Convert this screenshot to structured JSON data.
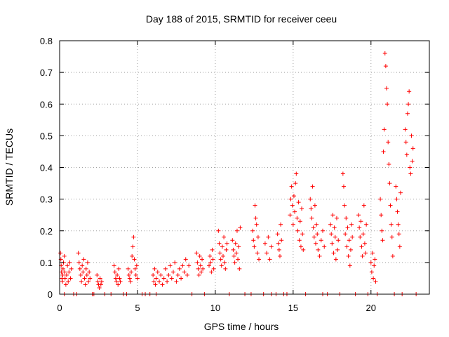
{
  "chart_data": {
    "type": "scatter",
    "title": "Day 188 of 2015, SRMTID for receiver ceeu",
    "xlabel": "GPS time / hours",
    "ylabel": "SRMTID / TECUs",
    "xlim": [
      0,
      23.75
    ],
    "ylim": [
      0,
      0.8
    ],
    "xticks": [
      0,
      5,
      10,
      15,
      20
    ],
    "yticks": [
      0,
      0.1,
      0.2,
      0.3,
      0.4,
      0.5,
      0.6,
      0.7,
      0.8
    ],
    "grid": true,
    "marker": "+",
    "color": "#ff0000",
    "series": [
      {
        "name": "SRMTID",
        "points": [
          [
            0.05,
            0.13
          ],
          [
            0.08,
            0.11
          ],
          [
            0.1,
            0.09
          ],
          [
            0.12,
            0.07
          ],
          [
            0.15,
            0.05
          ],
          [
            0.18,
            0.04
          ],
          [
            0.2,
            0.06
          ],
          [
            0.22,
            0.08
          ],
          [
            0.25,
            0.1
          ],
          [
            0.3,
            0.12
          ],
          [
            0.32,
            0.07
          ],
          [
            0.35,
            0.05
          ],
          [
            0.4,
            0.03
          ],
          [
            0.45,
            0.06
          ],
          [
            0.5,
            0.09
          ],
          [
            0.55,
            0.04
          ],
          [
            0.6,
            0.07
          ],
          [
            0.65,
            0.1
          ],
          [
            0.7,
            0.05
          ],
          [
            0.75,
            0.08
          ],
          [
            1.2,
            0.13
          ],
          [
            1.25,
            0.1
          ],
          [
            1.3,
            0.08
          ],
          [
            1.35,
            0.06
          ],
          [
            1.4,
            0.04
          ],
          [
            1.45,
            0.09
          ],
          [
            1.5,
            0.07
          ],
          [
            1.55,
            0.11
          ],
          [
            1.6,
            0.05
          ],
          [
            1.65,
            0.03
          ],
          [
            1.7,
            0.08
          ],
          [
            1.75,
            0.06
          ],
          [
            1.8,
            0.1
          ],
          [
            1.85,
            0.04
          ],
          [
            1.9,
            0.07
          ],
          [
            1.95,
            0.05
          ],
          [
            2.4,
            0.06
          ],
          [
            2.45,
            0.04
          ],
          [
            2.5,
            0.03
          ],
          [
            2.55,
            0.02
          ],
          [
            2.6,
            0.05
          ],
          [
            2.65,
            0.03
          ],
          [
            2.7,
            0.04
          ],
          [
            3.5,
            0.09
          ],
          [
            3.55,
            0.07
          ],
          [
            3.6,
            0.05
          ],
          [
            3.65,
            0.04
          ],
          [
            3.7,
            0.06
          ],
          [
            3.75,
            0.03
          ],
          [
            3.8,
            0.08
          ],
          [
            3.85,
            0.05
          ],
          [
            3.9,
            0.04
          ],
          [
            4.4,
            0.08
          ],
          [
            4.45,
            0.06
          ],
          [
            4.5,
            0.05
          ],
          [
            4.55,
            0.04
          ],
          [
            4.6,
            0.07
          ],
          [
            4.65,
            0.12
          ],
          [
            4.7,
            0.15
          ],
          [
            4.75,
            0.18
          ],
          [
            4.8,
            0.11
          ],
          [
            4.85,
            0.08
          ],
          [
            4.9,
            0.06
          ],
          [
            4.95,
            0.09
          ],
          [
            5.0,
            0.05
          ],
          [
            6.0,
            0.06
          ],
          [
            6.05,
            0.04
          ],
          [
            6.1,
            0.08
          ],
          [
            6.15,
            0.03
          ],
          [
            6.2,
            0.05
          ],
          [
            6.3,
            0.07
          ],
          [
            6.4,
            0.04
          ],
          [
            6.5,
            0.06
          ],
          [
            6.6,
            0.03
          ],
          [
            6.7,
            0.05
          ],
          [
            6.8,
            0.08
          ],
          [
            6.9,
            0.04
          ],
          [
            7.0,
            0.06
          ],
          [
            7.1,
            0.09
          ],
          [
            7.2,
            0.05
          ],
          [
            7.3,
            0.07
          ],
          [
            7.4,
            0.1
          ],
          [
            7.5,
            0.04
          ],
          [
            7.6,
            0.06
          ],
          [
            7.7,
            0.08
          ],
          [
            7.8,
            0.05
          ],
          [
            7.9,
            0.09
          ],
          [
            8.0,
            0.07
          ],
          [
            8.1,
            0.11
          ],
          [
            8.2,
            0.06
          ],
          [
            8.3,
            0.09
          ],
          [
            8.8,
            0.13
          ],
          [
            8.85,
            0.1
          ],
          [
            8.9,
            0.08
          ],
          [
            8.95,
            0.06
          ],
          [
            9.0,
            0.12
          ],
          [
            9.05,
            0.09
          ],
          [
            9.1,
            0.07
          ],
          [
            9.15,
            0.11
          ],
          [
            9.2,
            0.08
          ],
          [
            9.6,
            0.09
          ],
          [
            9.65,
            0.12
          ],
          [
            9.7,
            0.1
          ],
          [
            9.75,
            0.07
          ],
          [
            9.8,
            0.14
          ],
          [
            9.85,
            0.11
          ],
          [
            9.9,
            0.08
          ],
          [
            10.2,
            0.2
          ],
          [
            10.25,
            0.16
          ],
          [
            10.3,
            0.13
          ],
          [
            10.35,
            0.11
          ],
          [
            10.4,
            0.09
          ],
          [
            10.45,
            0.15
          ],
          [
            10.5,
            0.12
          ],
          [
            10.55,
            0.18
          ],
          [
            10.6,
            0.1
          ],
          [
            10.65,
            0.08
          ],
          [
            10.7,
            0.14
          ],
          [
            10.75,
            0.16
          ],
          [
            11.1,
            0.17
          ],
          [
            11.15,
            0.14
          ],
          [
            11.2,
            0.12
          ],
          [
            11.25,
            0.1
          ],
          [
            11.3,
            0.16
          ],
          [
            11.35,
            0.13
          ],
          [
            11.4,
            0.2
          ],
          [
            11.45,
            0.11
          ],
          [
            11.5,
            0.15
          ],
          [
            11.55,
            0.08
          ],
          [
            11.6,
            0.21
          ],
          [
            12.4,
            0.2
          ],
          [
            12.45,
            0.17
          ],
          [
            12.5,
            0.15
          ],
          [
            12.55,
            0.28
          ],
          [
            12.6,
            0.24
          ],
          [
            12.65,
            0.22
          ],
          [
            12.7,
            0.13
          ],
          [
            12.75,
            0.18
          ],
          [
            12.8,
            0.11
          ],
          [
            13.2,
            0.16
          ],
          [
            13.3,
            0.13
          ],
          [
            13.4,
            0.18
          ],
          [
            13.5,
            0.11
          ],
          [
            13.6,
            0.15
          ],
          [
            14.0,
            0.19
          ],
          [
            14.05,
            0.16
          ],
          [
            14.1,
            0.14
          ],
          [
            14.15,
            0.12
          ],
          [
            14.2,
            0.22
          ],
          [
            14.25,
            0.17
          ],
          [
            14.8,
            0.25
          ],
          [
            14.85,
            0.3
          ],
          [
            14.9,
            0.34
          ],
          [
            14.95,
            0.28
          ],
          [
            15.0,
            0.22
          ],
          [
            15.05,
            0.31
          ],
          [
            15.1,
            0.26
          ],
          [
            15.15,
            0.35
          ],
          [
            15.2,
            0.38
          ],
          [
            15.25,
            0.24
          ],
          [
            15.3,
            0.2
          ],
          [
            15.35,
            0.29
          ],
          [
            15.4,
            0.17
          ],
          [
            15.45,
            0.23
          ],
          [
            15.5,
            0.15
          ],
          [
            15.55,
            0.27
          ],
          [
            15.6,
            0.19
          ],
          [
            15.65,
            0.14
          ],
          [
            16.1,
            0.3
          ],
          [
            16.15,
            0.27
          ],
          [
            16.2,
            0.24
          ],
          [
            16.25,
            0.34
          ],
          [
            16.3,
            0.21
          ],
          [
            16.35,
            0.18
          ],
          [
            16.4,
            0.28
          ],
          [
            16.45,
            0.16
          ],
          [
            16.5,
            0.22
          ],
          [
            16.55,
            0.19
          ],
          [
            16.6,
            0.14
          ],
          [
            16.7,
            0.12
          ],
          [
            16.8,
            0.17
          ],
          [
            16.9,
            0.2
          ],
          [
            17.0,
            0.15
          ],
          [
            17.4,
            0.22
          ],
          [
            17.45,
            0.19
          ],
          [
            17.5,
            0.16
          ],
          [
            17.55,
            0.25
          ],
          [
            17.6,
            0.13
          ],
          [
            17.65,
            0.21
          ],
          [
            17.7,
            0.18
          ],
          [
            17.75,
            0.11
          ],
          [
            17.8,
            0.24
          ],
          [
            17.85,
            0.14
          ],
          [
            17.9,
            0.17
          ],
          [
            18.2,
            0.38
          ],
          [
            18.25,
            0.34
          ],
          [
            18.3,
            0.28
          ],
          [
            18.35,
            0.19
          ],
          [
            18.4,
            0.24
          ],
          [
            18.45,
            0.15
          ],
          [
            18.5,
            0.21
          ],
          [
            18.55,
            0.12
          ],
          [
            18.6,
            0.17
          ],
          [
            18.65,
            0.09
          ],
          [
            18.7,
            0.14
          ],
          [
            18.75,
            0.22
          ],
          [
            18.8,
            0.18
          ],
          [
            19.2,
            0.25
          ],
          [
            19.25,
            0.21
          ],
          [
            19.3,
            0.18
          ],
          [
            19.35,
            0.23
          ],
          [
            19.4,
            0.15
          ],
          [
            19.45,
            0.12
          ],
          [
            19.5,
            0.19
          ],
          [
            19.55,
            0.28
          ],
          [
            19.6,
            0.16
          ],
          [
            19.65,
            0.13
          ],
          [
            19.7,
            0.22
          ],
          [
            20.0,
            0.1
          ],
          [
            20.05,
            0.07
          ],
          [
            20.1,
            0.13
          ],
          [
            20.15,
            0.05
          ],
          [
            20.2,
            0.09
          ],
          [
            20.25,
            0.11
          ],
          [
            20.3,
            0.04
          ],
          [
            20.6,
            0.3
          ],
          [
            20.65,
            0.25
          ],
          [
            20.7,
            0.2
          ],
          [
            20.75,
            0.17
          ],
          [
            20.8,
            0.45
          ],
          [
            20.85,
            0.52
          ],
          [
            20.9,
            0.76
          ],
          [
            20.95,
            0.72
          ],
          [
            21.0,
            0.65
          ],
          [
            21.05,
            0.6
          ],
          [
            21.1,
            0.48
          ],
          [
            21.15,
            0.41
          ],
          [
            21.2,
            0.35
          ],
          [
            21.25,
            0.28
          ],
          [
            21.3,
            0.22
          ],
          [
            21.35,
            0.18
          ],
          [
            21.4,
            0.12
          ],
          [
            21.6,
            0.34
          ],
          [
            21.65,
            0.3
          ],
          [
            21.7,
            0.26
          ],
          [
            21.75,
            0.22
          ],
          [
            21.8,
            0.19
          ],
          [
            21.85,
            0.15
          ],
          [
            21.9,
            0.32
          ],
          [
            22.2,
            0.52
          ],
          [
            22.25,
            0.48
          ],
          [
            22.3,
            0.44
          ],
          [
            22.35,
            0.57
          ],
          [
            22.4,
            0.6
          ],
          [
            22.45,
            0.64
          ],
          [
            22.5,
            0.4
          ],
          [
            22.55,
            0.38
          ],
          [
            22.6,
            0.5
          ],
          [
            22.65,
            0.42
          ],
          [
            22.7,
            0.46
          ]
        ],
        "zero_points_x": [
          0.3,
          0.9,
          1.1,
          2.1,
          2.2,
          2.9,
          3.3,
          4.1,
          4.3,
          5.3,
          5.5,
          5.8,
          6.2,
          8.5,
          9.3,
          10.9,
          11.9,
          12.3,
          13.1,
          13.6,
          13.9,
          14.4,
          14.6,
          15.8,
          16.9,
          17.2,
          18.0,
          19.0,
          19.8,
          20.4,
          21.5,
          22.0,
          22.9
        ]
      }
    ]
  }
}
